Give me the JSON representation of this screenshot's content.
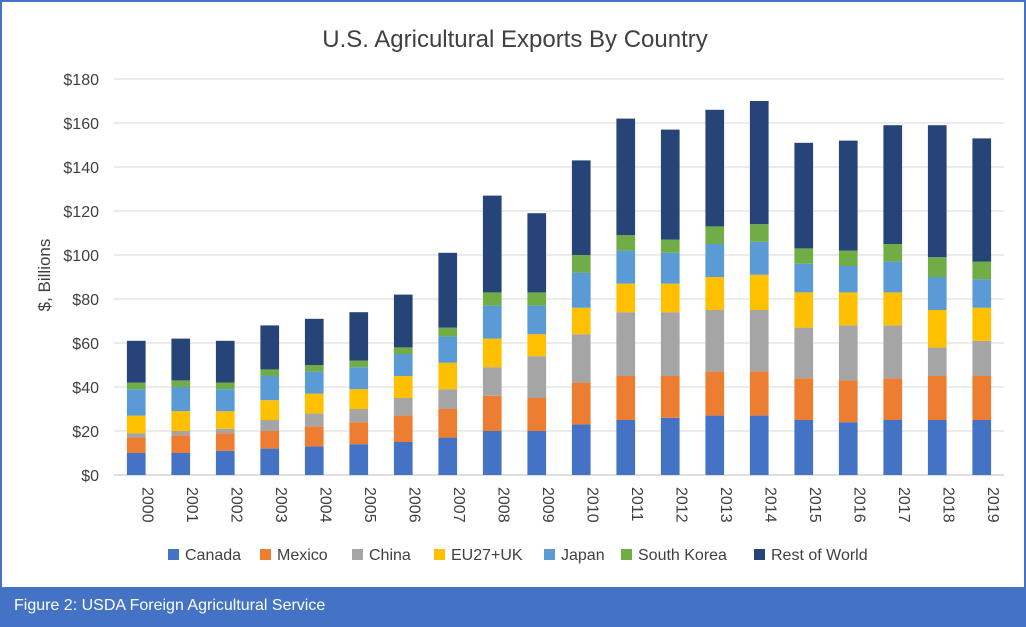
{
  "chart_data": {
    "type": "bar",
    "stacked": true,
    "title": "U.S. Agricultural Exports By Country",
    "xlabel": "",
    "ylabel": "$, Billions",
    "ylim": [
      0,
      180
    ],
    "ytick_step": 20,
    "ytick_prefix": "$",
    "grid": true,
    "legend_position": "bottom",
    "categories": [
      "2000",
      "2001",
      "2002",
      "2003",
      "2004",
      "2005",
      "2006",
      "2007",
      "2008",
      "2009",
      "2010",
      "2011",
      "2012",
      "2013",
      "2014",
      "2015",
      "2016",
      "2017",
      "2018",
      "2019"
    ],
    "series": [
      {
        "name": "Canada",
        "color": "#4472c4",
        "values": [
          10,
          10,
          11,
          12,
          13,
          14,
          15,
          17,
          20,
          20,
          23,
          25,
          26,
          27,
          27,
          25,
          24,
          25,
          25,
          25
        ]
      },
      {
        "name": "Mexico",
        "color": "#ed7d31",
        "values": [
          7,
          8,
          8,
          8,
          9,
          10,
          12,
          13,
          16,
          15,
          19,
          20,
          19,
          20,
          20,
          19,
          19,
          19,
          20,
          20
        ]
      },
      {
        "name": "China",
        "color": "#a5a5a5",
        "values": [
          2,
          2,
          2,
          5,
          6,
          6,
          8,
          9,
          13,
          19,
          22,
          29,
          29,
          28,
          28,
          23,
          25,
          24,
          13,
          16
        ]
      },
      {
        "name": "EU27+UK",
        "color": "#ffc000",
        "values": [
          8,
          9,
          8,
          9,
          9,
          9,
          10,
          12,
          13,
          10,
          12,
          13,
          13,
          15,
          16,
          16,
          15,
          15,
          17,
          15
        ]
      },
      {
        "name": "Japan",
        "color": "#5b9bd5",
        "values": [
          12,
          11,
          10,
          11,
          10,
          10,
          10,
          12,
          15,
          13,
          16,
          15,
          14,
          15,
          15,
          13,
          12,
          14,
          15,
          13
        ]
      },
      {
        "name": "South Korea",
        "color": "#70ad47",
        "values": [
          3,
          3,
          3,
          3,
          3,
          3,
          3,
          4,
          6,
          6,
          8,
          7,
          6,
          8,
          8,
          7,
          7,
          8,
          9,
          8
        ]
      },
      {
        "name": "Rest of World",
        "color": "#264478",
        "values": [
          19,
          19,
          19,
          20,
          21,
          22,
          24,
          34,
          44,
          36,
          43,
          53,
          50,
          53,
          56,
          48,
          50,
          54,
          60,
          56
        ]
      }
    ]
  },
  "caption": "Figure 2: USDA Foreign Agricultural Service"
}
